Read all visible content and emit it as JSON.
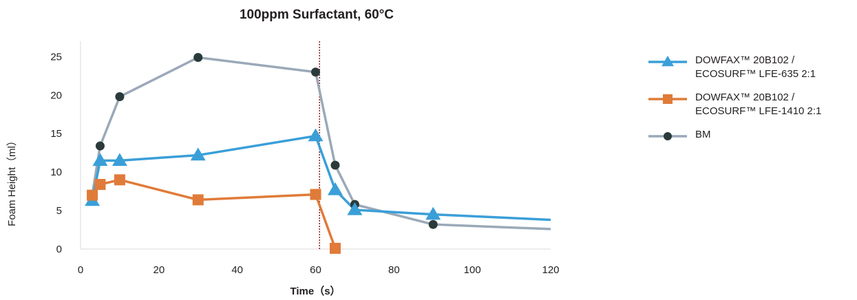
{
  "chart_data": {
    "type": "line",
    "title": "100ppm Surfactant, 60°C",
    "xlabel": "Time（s）",
    "ylabel": "Foam Height（ml）",
    "xlim": [
      0,
      120
    ],
    "ylim": [
      0,
      27
    ],
    "xticks": [
      0,
      20,
      40,
      60,
      80,
      100,
      120
    ],
    "yticks": [
      0,
      5,
      10,
      15,
      20,
      25
    ],
    "grid": false,
    "legend_position": "right",
    "reference_line_x": 61,
    "series": [
      {
        "name_lines": [
          "DOWFAX™ 20B102 /",
          "ECOSURF™ LFE-635 2:1"
        ],
        "marker": "triangle",
        "color": "#3a9fd8",
        "x": [
          3,
          5,
          10,
          30,
          60,
          65,
          70,
          90,
          120
        ],
        "y": [
          6.3,
          11.5,
          11.5,
          12.2,
          14.7,
          7.7,
          5.1,
          4.5,
          3.8
        ],
        "marker_count": 8
      },
      {
        "name_lines": [
          "DOWFAX™ 20B102 /",
          "ECOSURF™ LFE-1410 2:1"
        ],
        "marker": "square",
        "color": "#e07b39",
        "x": [
          3,
          5,
          10,
          30,
          60,
          65
        ],
        "y": [
          7.0,
          8.4,
          9.0,
          6.4,
          7.1,
          0.1
        ],
        "marker_count": 6
      },
      {
        "name_lines": [
          "BM"
        ],
        "marker": "circle",
        "color": "#9aa9b8",
        "marker_color": "#2b3a3a",
        "x": [
          3,
          5,
          10,
          30,
          60,
          65,
          70,
          90,
          120
        ],
        "y": [
          7.1,
          13.4,
          19.8,
          24.9,
          23.0,
          10.9,
          5.8,
          3.2,
          2.6
        ],
        "marker_count": 8
      }
    ]
  }
}
